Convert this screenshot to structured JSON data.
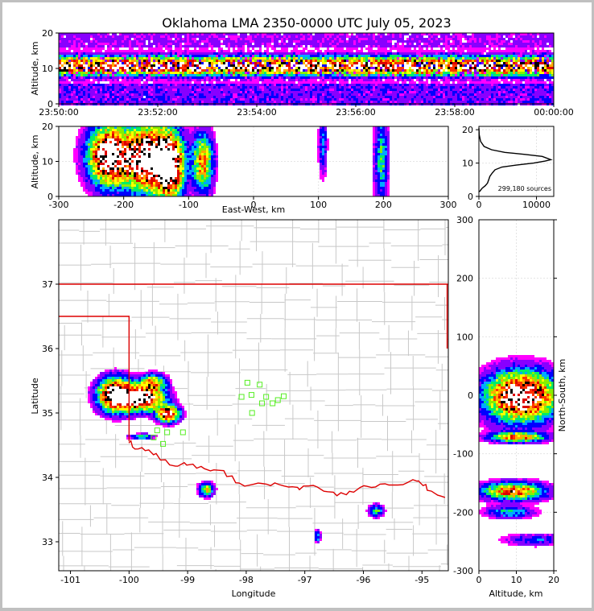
{
  "title": "Oklahoma LMA 2350-0000 UTC July 05, 2023",
  "colors": {
    "frame_border": "#c0c0c0",
    "state_line": "#dd0000",
    "county_line": "#c8c8c8",
    "station_marker": "#55ee22",
    "density_scale": [
      "#ff00ff",
      "#8800ff",
      "#0000ff",
      "#00aaff",
      "#00ee66",
      "#88ee00",
      "#ffff00",
      "#ffaa00",
      "#ff3300",
      "#dd0000",
      "#000000",
      "#ffffff"
    ]
  },
  "chart_data": [
    {
      "id": "time-altitude",
      "type": "heatmap",
      "xlabel": "",
      "ylabel": "Altitude, km",
      "x_ticks": [
        "23:50:00",
        "23:52:00",
        "23:54:00",
        "23:56:00",
        "23:58:00",
        "00:00:00"
      ],
      "y_ticks": [
        "0",
        "10",
        "20"
      ],
      "ylim": [
        0,
        20
      ],
      "description_band_km": [
        7,
        14
      ],
      "core_altitude_km": 11
    },
    {
      "id": "ew-altitude",
      "type": "heatmap",
      "xlabel": "East-West, km",
      "ylabel": "Altitude, km",
      "xlim": [
        -300,
        300
      ],
      "ylim": [
        0,
        20
      ],
      "x_ticks": [
        "-300",
        "-200",
        "-100",
        "0",
        "100",
        "200",
        "300"
      ],
      "y_ticks": [
        "0",
        "10",
        "20"
      ],
      "clusters": [
        {
          "x": -225,
          "alt": 12,
          "intensity": 1.0,
          "w": 30,
          "h": 8
        },
        {
          "x": -165,
          "alt": 11,
          "intensity": 1.0,
          "w": 35,
          "h": 9
        },
        {
          "x": -130,
          "alt": 9,
          "intensity": 0.9,
          "w": 20,
          "h": 9
        },
        {
          "x": -80,
          "alt": 10,
          "intensity": 0.6,
          "w": 15,
          "h": 8
        },
        {
          "x": 105,
          "alt": 15,
          "intensity": 0.25,
          "w": 6,
          "h": 8
        },
        {
          "x": 195,
          "alt": 11,
          "intensity": 0.35,
          "w": 10,
          "h": 12
        }
      ]
    },
    {
      "id": "altitude-histogram",
      "type": "line",
      "xlabel": "",
      "ylabel": "",
      "annotation": "299,180 sources",
      "xlim": [
        0,
        13000
      ],
      "ylim": [
        0,
        21
      ],
      "x_ticks": [
        "0",
        "10000"
      ],
      "y_ticks": [
        "0",
        "10",
        "20"
      ],
      "x": [
        0,
        200,
        350,
        600,
        1100,
        1500,
        1700,
        1900,
        2300,
        2800,
        4000,
        6500,
        9500,
        11500,
        12500,
        11000,
        8000,
        4500,
        2200,
        900,
        300,
        50,
        0
      ],
      "y": [
        1.4,
        1.6,
        2.0,
        2.5,
        3.2,
        4.0,
        5.0,
        6.0,
        7.0,
        8.0,
        8.8,
        9.4,
        10.0,
        10.6,
        11.0,
        12.0,
        12.6,
        13.2,
        14.0,
        15.0,
        16.5,
        18.5,
        20.5
      ]
    },
    {
      "id": "plan-view",
      "type": "scatter",
      "xlabel": "Longitude",
      "ylabel": "Latitude",
      "xlim": [
        -101.2,
        -94.55
      ],
      "ylim": [
        32.55,
        38.0
      ],
      "x_ticks": [
        "-101",
        "-100",
        "-99",
        "-98",
        "-97",
        "-96",
        "-95"
      ],
      "y_ticks": [
        "33",
        "34",
        "35",
        "36",
        "37"
      ],
      "clusters": [
        {
          "lon": -100.25,
          "lat": 35.3,
          "intensity": 1.0,
          "w": 0.28,
          "h": 0.24
        },
        {
          "lon": -99.8,
          "lat": 35.25,
          "intensity": 1.0,
          "w": 0.35,
          "h": 0.18
        },
        {
          "lon": -99.35,
          "lat": 35.0,
          "intensity": 0.85,
          "w": 0.18,
          "h": 0.12
        },
        {
          "lon": -99.6,
          "lat": 35.5,
          "intensity": 0.5,
          "w": 0.2,
          "h": 0.12
        },
        {
          "lon": -99.8,
          "lat": 34.65,
          "intensity": 0.35,
          "w": 0.2,
          "h": 0.04
        },
        {
          "lon": -98.7,
          "lat": 33.83,
          "intensity": 0.5,
          "w": 0.12,
          "h": 0.1
        },
        {
          "lon": -95.8,
          "lat": 33.5,
          "intensity": 0.35,
          "w": 0.12,
          "h": 0.09
        },
        {
          "lon": -96.8,
          "lat": 33.1,
          "intensity": 0.3,
          "w": 0.05,
          "h": 0.09
        }
      ],
      "stations": [
        {
          "lon": -97.98,
          "lat": 35.47
        },
        {
          "lon": -97.77,
          "lat": 35.44
        },
        {
          "lon": -97.91,
          "lat": 35.28
        },
        {
          "lon": -98.08,
          "lat": 35.25
        },
        {
          "lon": -97.66,
          "lat": 35.25
        },
        {
          "lon": -97.46,
          "lat": 35.2
        },
        {
          "lon": -97.36,
          "lat": 35.26
        },
        {
          "lon": -97.73,
          "lat": 35.15
        },
        {
          "lon": -97.55,
          "lat": 35.15
        },
        {
          "lon": -97.9,
          "lat": 35.0
        },
        {
          "lon": -99.52,
          "lat": 34.73
        },
        {
          "lon": -99.35,
          "lat": 34.7
        },
        {
          "lon": -99.08,
          "lat": 34.7
        },
        {
          "lon": -99.42,
          "lat": 34.52
        },
        {
          "lon": -99.58,
          "lat": 34.62
        }
      ]
    },
    {
      "id": "altitude-ns",
      "type": "heatmap",
      "xlabel": "Altitude, km",
      "ylabel": "North-South, km",
      "xlim": [
        0,
        20
      ],
      "ylim": [
        -300,
        300
      ],
      "x_ticks": [
        "0",
        "10",
        "20"
      ],
      "y_ticks": [
        "-300",
        "-200",
        "-100",
        "0",
        "100",
        "200",
        "300"
      ],
      "clusters": [
        {
          "alt": 11,
          "ns": 0,
          "intensity": 1.0,
          "w": 9,
          "h": 40
        },
        {
          "alt": 10,
          "ns": -70,
          "intensity": 0.6,
          "w": 7,
          "h": 8
        },
        {
          "alt": 9,
          "ns": -162,
          "intensity": 0.7,
          "w": 8,
          "h": 14
        },
        {
          "alt": 8,
          "ns": -198,
          "intensity": 0.3,
          "w": 6,
          "h": 10
        },
        {
          "alt": 15,
          "ns": -245,
          "intensity": 0.2,
          "w": 8,
          "h": 10
        }
      ]
    }
  ]
}
